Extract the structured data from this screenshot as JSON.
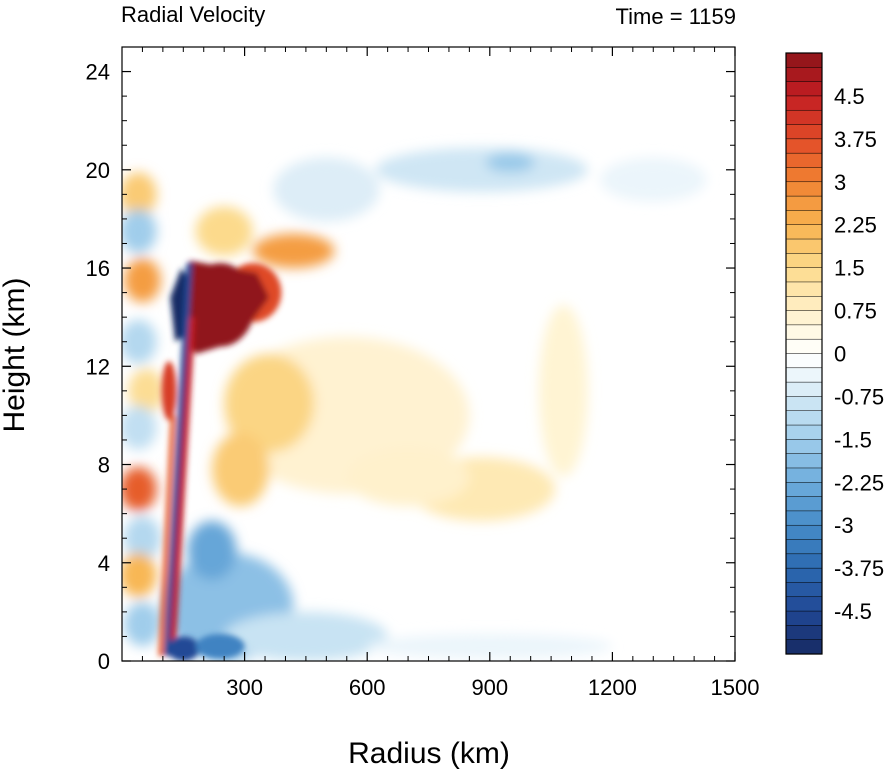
{
  "chart_data": {
    "type": "heatmap",
    "title_left": "Radial Velocity",
    "title_right": "Time = 1159",
    "xlabel": "Radius (km)",
    "ylabel": "Height (km)",
    "xlim": [
      0,
      1500
    ],
    "ylim": [
      0,
      25
    ],
    "x_ticks": [
      300,
      600,
      900,
      1200,
      1500
    ],
    "y_ticks": [
      0,
      4,
      8,
      12,
      16,
      20,
      24
    ],
    "colorbar": {
      "min": -5.25,
      "max": 5.25,
      "step": 0.25,
      "labels": [
        "4.5",
        "3.75",
        "3",
        "2.25",
        "1.5",
        "0.75",
        "0",
        "-0.75",
        "-1.5",
        "-2.25",
        "-3",
        "-3.75",
        "-4.5"
      ],
      "label_values": [
        4.5,
        3.75,
        3,
        2.25,
        1.5,
        0.75,
        0,
        -0.75,
        -1.5,
        -2.25,
        -3,
        -3.75,
        -4.5
      ]
    },
    "features": [
      {
        "name": "upper outflow core",
        "x": [
          180,
          330
        ],
        "y": [
          13,
          16
        ],
        "value": 5.2
      },
      {
        "name": "inner inflow core",
        "x": [
          100,
          150
        ],
        "y": [
          12.8,
          15.8
        ],
        "value": -5.2
      },
      {
        "name": "lower boundary inflow",
        "x": [
          100,
          500
        ],
        "y": [
          0,
          5
        ],
        "value": -2.5
      },
      {
        "name": "mid-level outflow",
        "x": [
          250,
          1000
        ],
        "y": [
          5,
          13
        ],
        "value": 1.0
      },
      {
        "name": "upper-level inflow band",
        "x": [
          300,
          1420
        ],
        "y": [
          18,
          21
        ],
        "value": -0.9
      }
    ]
  }
}
